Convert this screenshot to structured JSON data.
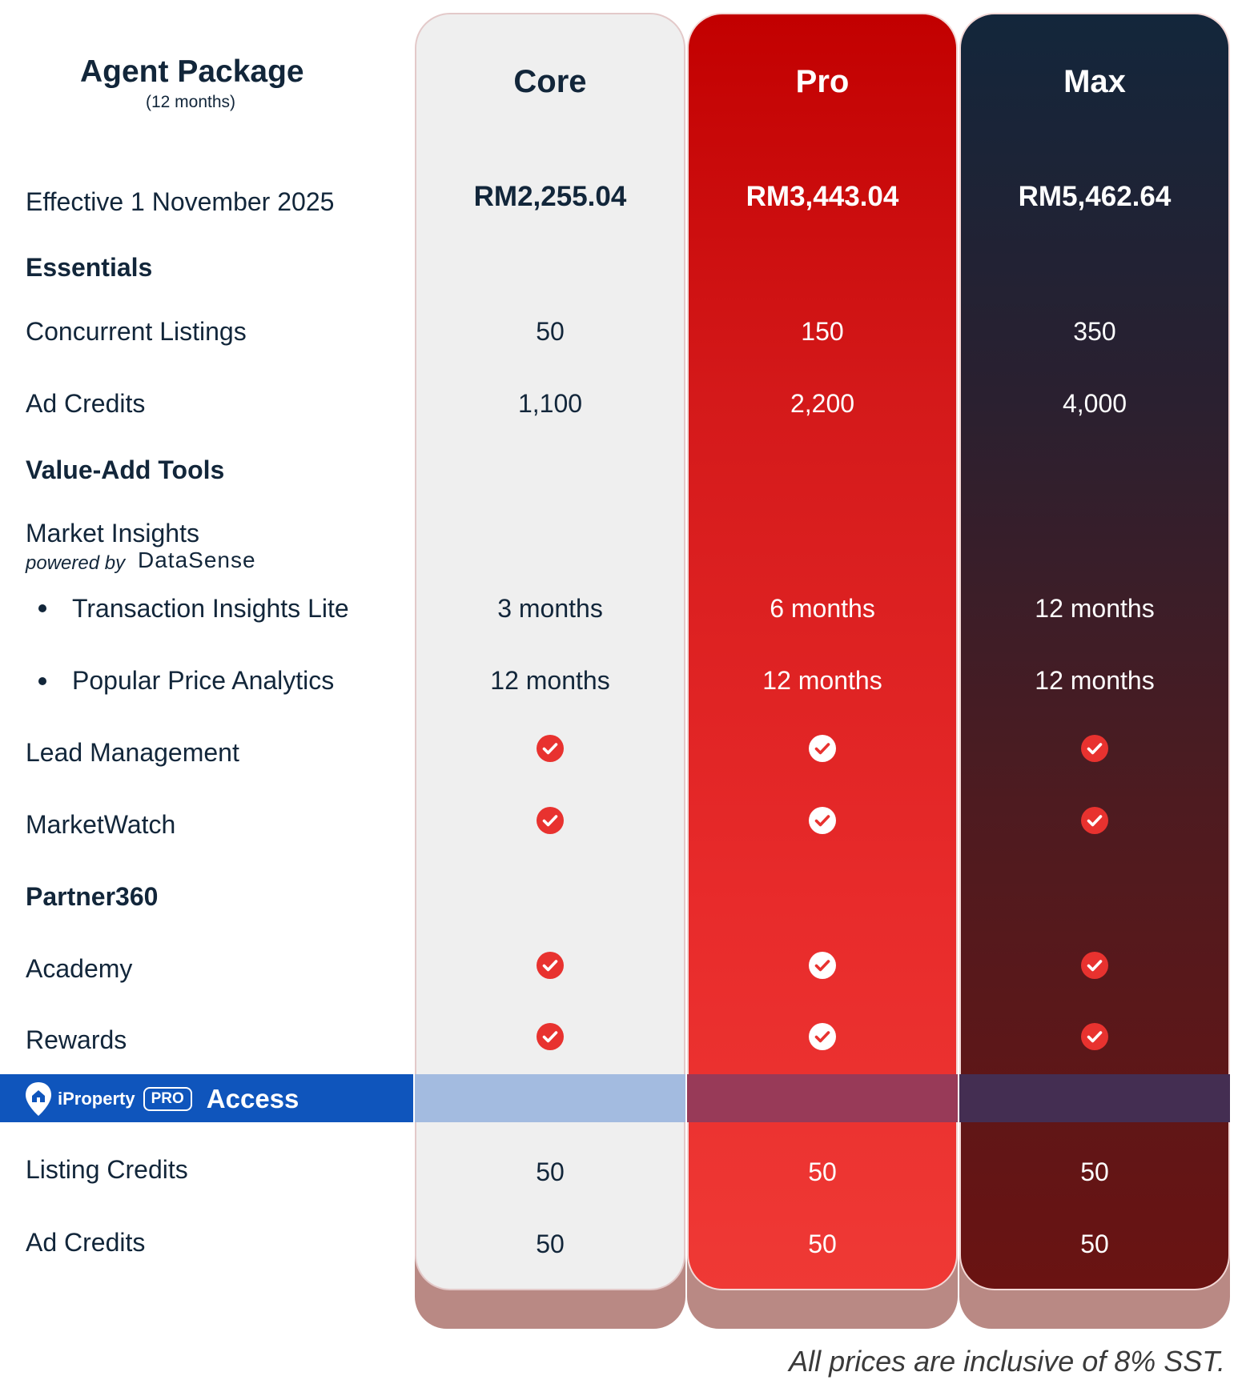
{
  "title": {
    "main": "Agent Package",
    "sub": "(12 months)"
  },
  "effective_label": "Effective 1 November 2025",
  "plans": [
    {
      "name": "Core",
      "price": "RM2,255.04"
    },
    {
      "name": "Pro",
      "price": "RM3,443.04"
    },
    {
      "name": "Max",
      "price": "RM5,462.64"
    }
  ],
  "sections": {
    "essentials": "Essentials",
    "value_add": "Value-Add Tools",
    "partner360": "Partner360"
  },
  "rows": {
    "concurrent_listings": {
      "label": "Concurrent Listings",
      "values": [
        "50",
        "150",
        "350"
      ]
    },
    "ad_credits": {
      "label": "Ad Credits",
      "values": [
        "1,100",
        "2,200",
        "4,000"
      ]
    },
    "market_insights": {
      "label": "Market Insights",
      "powered_by": "powered by",
      "brand": "DataSense"
    },
    "transaction_insights": {
      "label": "Transaction Insights Lite",
      "values": [
        "3 months",
        "6 months",
        "12 months"
      ]
    },
    "popular_price": {
      "label": "Popular Price Analytics",
      "values": [
        "12 months",
        "12 months",
        "12 months"
      ]
    },
    "lead_management": {
      "label": "Lead Management",
      "values": [
        true,
        true,
        true
      ]
    },
    "marketwatch": {
      "label": "MarketWatch",
      "values": [
        true,
        true,
        true
      ]
    },
    "academy": {
      "label": "Academy",
      "values": [
        true,
        true,
        true
      ]
    },
    "rewards": {
      "label": "Rewards",
      "values": [
        true,
        true,
        true
      ]
    },
    "listing_credits": {
      "label": "Listing Credits",
      "values": [
        "50",
        "50",
        "50"
      ]
    },
    "access_ad_credits": {
      "label": "Ad Credits",
      "values": [
        "50",
        "50",
        "50"
      ]
    }
  },
  "access_banner": {
    "brand": "iProperty",
    "badge": "PRO",
    "label": "Access"
  },
  "footnote": "All prices are inclusive of 8% SST.",
  "colors": {
    "core_bg": "#efefef",
    "pro_red": "#d4191a",
    "max_navy": "#13263b",
    "max_maroon": "#6a1312",
    "access_blue": "#0f55bc",
    "check_red": "#e8322f"
  }
}
